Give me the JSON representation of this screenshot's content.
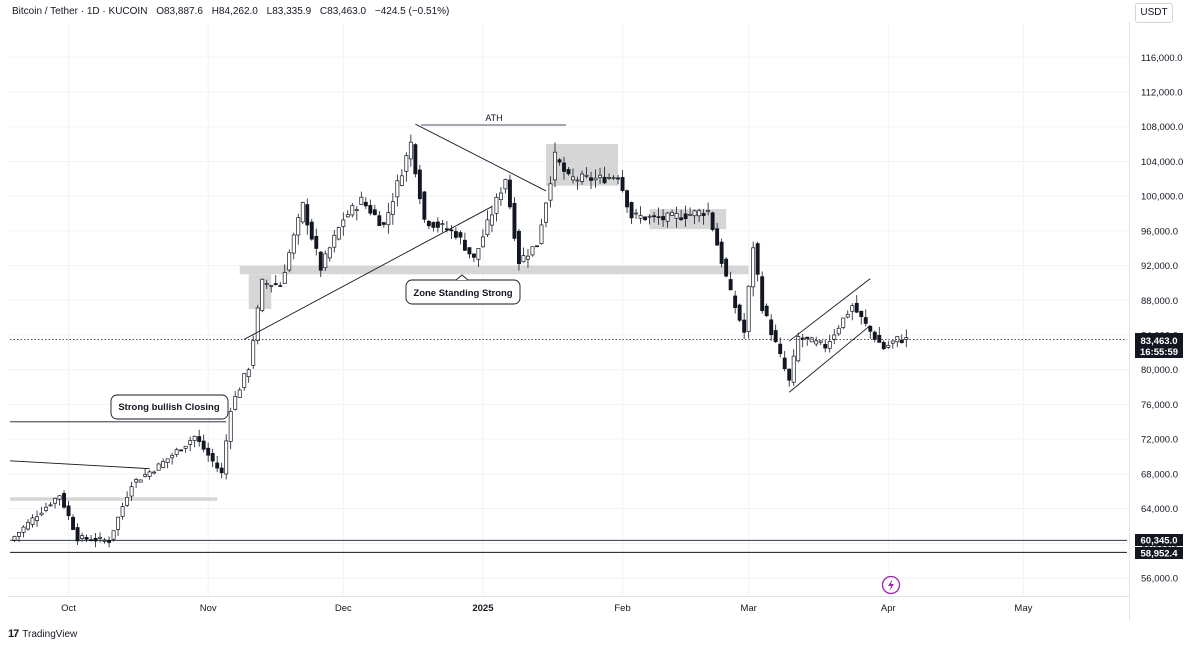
{
  "header": {
    "symbol": "Bitcoin / Tether · 1D · KUCOIN",
    "open": "O83,887.6",
    "high": "H84,262.0",
    "low": "L83,335.9",
    "close": "C83,463.0",
    "change": "−424.5 (−0.51%)"
  },
  "currency_label": "USDT",
  "brand": {
    "name": "TradingView",
    "logo_text": "17"
  },
  "price_tags": {
    "current_price": "83,463.0",
    "countdown": "16:55:59",
    "level_1": "60,345.0",
    "level_2": "58,952.4"
  },
  "annotations": {
    "ath": "ATH",
    "zone": "Zone Standing Strong",
    "bullish": "Strong bullish Closing"
  },
  "colors": {
    "candle": "#131722",
    "zone": "#d6d6d6",
    "grid": "#f0f3fa",
    "tag": "#131722"
  },
  "chart_data": {
    "type": "candlestick",
    "symbol": "Bitcoin / Tether",
    "interval": "1D",
    "exchange": "KUCOIN",
    "ylim": [
      54000,
      120000
    ],
    "y_ticks": [
      56000,
      60000,
      64000,
      68000,
      72000,
      76000,
      80000,
      84000,
      88000,
      92000,
      96000,
      100000,
      104000,
      108000,
      112000,
      116000
    ],
    "x_ticks": [
      {
        "label": "Oct",
        "date": "2024-10-01"
      },
      {
        "label": "Nov",
        "date": "2024-11-01"
      },
      {
        "label": "Dec",
        "date": "2024-12-01"
      },
      {
        "label": "2025",
        "date": "2025-01-01"
      },
      {
        "label": "Feb",
        "date": "2025-02-01"
      },
      {
        "label": "Mar",
        "date": "2025-03-01"
      },
      {
        "label": "Apr",
        "date": "2025-04-01"
      },
      {
        "label": "May",
        "date": "2025-05-01"
      }
    ],
    "x_range": [
      "2024-09-18",
      "2025-05-24"
    ],
    "last_close": 83463.0,
    "horizontal_levels": [
      60345.0,
      58952.4
    ],
    "anchors": [
      {
        "date": "2024-09-18",
        "close": 60300
      },
      {
        "date": "2024-09-24",
        "close": 63300
      },
      {
        "date": "2024-09-29",
        "close": 65600
      },
      {
        "date": "2024-10-03",
        "close": 60600
      },
      {
        "date": "2024-10-10",
        "close": 60300
      },
      {
        "date": "2024-10-15",
        "close": 66900
      },
      {
        "date": "2024-10-21",
        "close": 68900
      },
      {
        "date": "2024-10-29",
        "close": 72300
      },
      {
        "date": "2024-11-04",
        "close": 68000
      },
      {
        "date": "2024-11-06",
        "close": 75600
      },
      {
        "date": "2024-11-10",
        "close": 80300
      },
      {
        "date": "2024-11-13",
        "close": 90000
      },
      {
        "date": "2024-11-17",
        "close": 89800
      },
      {
        "date": "2024-11-22",
        "close": 98900
      },
      {
        "date": "2024-11-26",
        "close": 91700
      },
      {
        "date": "2024-12-01",
        "close": 97400
      },
      {
        "date": "2024-12-05",
        "close": 99500
      },
      {
        "date": "2024-12-10",
        "close": 96600
      },
      {
        "date": "2024-12-16",
        "close": 106100
      },
      {
        "date": "2024-12-19",
        "close": 97300
      },
      {
        "date": "2024-12-26",
        "close": 95700
      },
      {
        "date": "2024-12-30",
        "close": 92700
      },
      {
        "date": "2025-01-06",
        "close": 102100
      },
      {
        "date": "2025-01-09",
        "close": 92500
      },
      {
        "date": "2025-01-13",
        "close": 94500
      },
      {
        "date": "2025-01-17",
        "close": 104500
      },
      {
        "date": "2025-01-20",
        "close": 102000
      },
      {
        "date": "2025-01-27",
        "close": 102000
      },
      {
        "date": "2025-01-31",
        "close": 102400
      },
      {
        "date": "2025-02-03",
        "close": 97700
      },
      {
        "date": "2025-02-10",
        "close": 97400
      },
      {
        "date": "2025-02-20",
        "close": 98300
      },
      {
        "date": "2025-02-25",
        "close": 88700
      },
      {
        "date": "2025-02-28",
        "close": 84300
      },
      {
        "date": "2025-03-02",
        "close": 94300
      },
      {
        "date": "2025-03-04",
        "close": 87300
      },
      {
        "date": "2025-03-10",
        "close": 78600
      },
      {
        "date": "2025-03-12",
        "close": 83700
      },
      {
        "date": "2025-03-18",
        "close": 82700
      },
      {
        "date": "2025-03-24",
        "close": 87400
      },
      {
        "date": "2025-03-28",
        "close": 84400
      },
      {
        "date": "2025-03-31",
        "close": 82500
      },
      {
        "date": "2025-04-03",
        "close": 83500
      },
      {
        "date": "2025-04-05",
        "close": 83463
      }
    ]
  }
}
